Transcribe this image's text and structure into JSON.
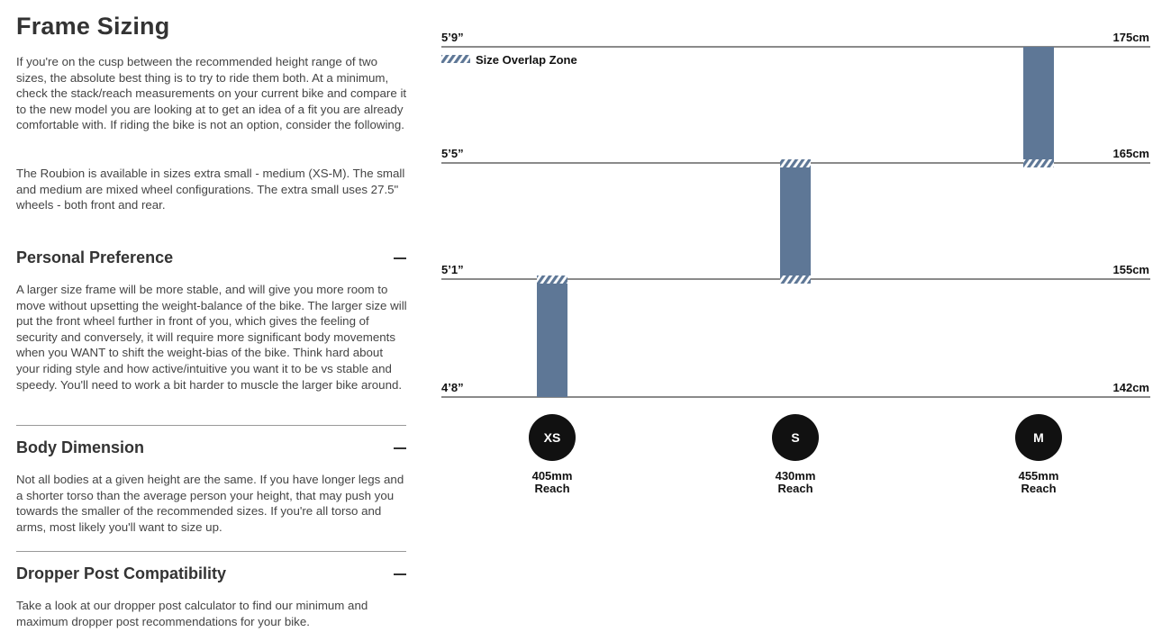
{
  "intro": {
    "title": "Frame Sizing",
    "paragraph1": "If you're on the cusp between the recommended height range of two sizes, the absolute best thing is to try to ride them both. At a minimum, check the stack/reach measurements on your current bike and compare it to the new model you are looking at to get an idea of a fit you are already comfortable with. If riding the bike is not an option, consider the following.",
    "paragraph2": "The Roubion is available in sizes extra small - medium (XS-M). The small and medium are mixed wheel configurations. The extra small uses 27.5\" wheels - both front and rear."
  },
  "sections": [
    {
      "title": "Personal Preference",
      "icon": "minus-icon",
      "body": "A larger size frame will be more stable, and will give you more room to move without upsetting the weight-balance of the bike. The larger size will put the front wheel further in front of you, which gives the feeling of security and conversely, it will require more significant body movements when you WANT to shift the weight-bias of the bike. Think hard about your riding style and how active/intuitive you want it to be vs stable and speedy. You'll need to work a bit harder to muscle the larger bike around."
    },
    {
      "title": "Body Dimension",
      "icon": "minus-icon",
      "body": "Not all bodies at a given height are the same. If you have longer legs and a shorter torso than the average person your height, that may push you towards the smaller of the recommended sizes. If you're all torso and arms, most likely you'll want to size up."
    },
    {
      "title": "Dropper Post Compatibility",
      "icon": "minus-icon",
      "body": "Take a look at our dropper post calculator to find our minimum and maximum dropper post recommendations for your bike."
    }
  ],
  "chart_data": {
    "type": "bar",
    "subtype": "floating-range",
    "legend": {
      "label": "Size Overlap Zone",
      "placement": "top-left"
    },
    "levels": [
      {
        "imperial": "4’8”",
        "metric": "142cm"
      },
      {
        "imperial": "5’1”",
        "metric": "155cm"
      },
      {
        "imperial": "5’5”",
        "metric": "165cm"
      },
      {
        "imperial": "5’9”",
        "metric": "175cm"
      }
    ],
    "sizes": [
      {
        "size": "XS",
        "reach": "405mm",
        "reach_label": "Reach",
        "min_cm": 142,
        "max_cm": 155,
        "overlap_bottom": false,
        "overlap_top": true
      },
      {
        "size": "S",
        "reach": "430mm",
        "reach_label": "Reach",
        "min_cm": 155,
        "max_cm": 165,
        "overlap_bottom": true,
        "overlap_top": true
      },
      {
        "size": "M",
        "reach": "455mm",
        "reach_label": "Reach",
        "min_cm": 165,
        "max_cm": 175,
        "overlap_bottom": true,
        "overlap_top": false
      }
    ],
    "colors": {
      "bar": "#5e7796",
      "hatch": "#5e7796",
      "line": "#444444",
      "badge": "#111111"
    }
  }
}
